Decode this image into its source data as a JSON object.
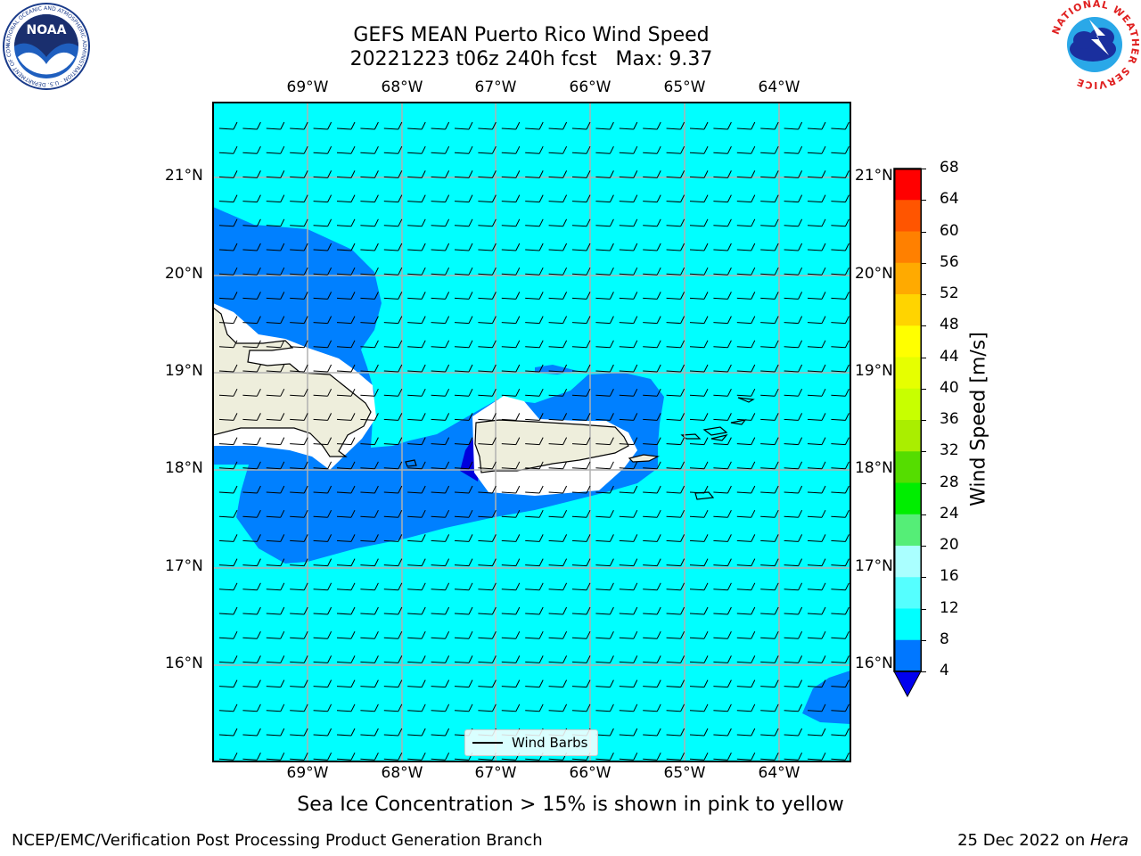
{
  "title_line1": "GEFS MEAN Puerto Rico Wind Speed",
  "title_line2": "20221223 t06z 240h fcst   Max: 9.37",
  "lon_labels": [
    "69°W",
    "68°W",
    "67°W",
    "66°W",
    "65°W",
    "64°W"
  ],
  "lat_labels": [
    "21°N",
    "20°N",
    "19°N",
    "18°N",
    "17°N",
    "16°N"
  ],
  "colorbar": {
    "title": "Wind Speed [m/s]",
    "ticks": [
      "68",
      "64",
      "60",
      "56",
      "52",
      "48",
      "44",
      "40",
      "36",
      "32",
      "28",
      "24",
      "20",
      "16",
      "12",
      "8",
      "4"
    ],
    "colors": [
      "#ff0000",
      "#ff2a00",
      "#ff5500",
      "#ff8000",
      "#ffaa00",
      "#ffd400",
      "#ffff00",
      "#e6ff00",
      "#c8ff00",
      "#aaee00",
      "#55dd00",
      "#00ee00",
      "#55ee77",
      "#aaffff",
      "#55ffff",
      "#00ffff",
      "#0077ff"
    ],
    "extend_color": "#0000ee"
  },
  "legend_label": "Wind Barbs",
  "caption": "Sea Ice Concentration > 15% is shown in pink to yellow",
  "footer_left": "NCEP/EMC/Verification Post Processing Product Generation Branch",
  "footer_date": "25 Dec 2022 on ",
  "footer_machine": "Hera",
  "logo_left_text": "NOAA",
  "logo_left_ring_text": "NATIONAL OCEANIC AND ATMOSPHERIC ADMINISTRATION · U.S. DEPARTMENT OF COMMERCE",
  "logo_right_ring_text": "NATIONAL WEATHER SERVICE",
  "colors": {
    "ocean_fill": "#00ffff",
    "low_wind_fill": "#0080ff",
    "land_fill": "#eeeedc",
    "grid": "#b0b0b0"
  }
}
